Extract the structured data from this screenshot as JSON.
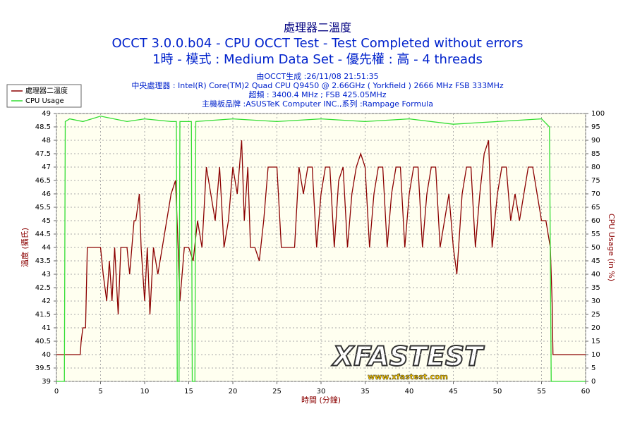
{
  "chart_data": {
    "type": "line",
    "title": "處理器二溫度",
    "subtitles": [
      "OCCT 3.0.0.b04 - CPU OCCT Test - Test Completed without errors",
      "1時 - 模式 : Medium Data Set - 優先權 : 高 - 4 threads"
    ],
    "info": [
      "由OCCT生成 :26/11/08 21:51:35",
      "中央處理器 : Intel(R) Core(TM)2 Quad CPU Q9450 @ 2.66GHz ( Yorkfield ) 2666 MHz FSB 333MHz",
      "超頻 : 3400.4 MHz ; FSB 425.05MHz",
      "主機板品牌 :ASUSTeK Computer INC.,系列 :Rampage Formula"
    ],
    "x_label": "時間 (分鐘)",
    "y_label": "溫度 (攝氏)",
    "y2_label": "CPU Usage (in %)",
    "watermark": [
      "XFASTEST",
      "www.xfastest.com"
    ],
    "xlim": [
      0,
      60
    ],
    "xticks": [
      0,
      5,
      10,
      15,
      20,
      25,
      30,
      35,
      40,
      45,
      50,
      55,
      60
    ],
    "ylim": [
      39,
      49
    ],
    "yticks": [
      39,
      39.5,
      40,
      40.5,
      41,
      41.5,
      42,
      42.5,
      43,
      43.5,
      44,
      44.5,
      45,
      45.5,
      46,
      46.5,
      47,
      47.5,
      48,
      48.5,
      49
    ],
    "y2lim": [
      0,
      100
    ],
    "y2ticks": [
      0,
      5,
      10,
      15,
      20,
      25,
      30,
      35,
      40,
      45,
      50,
      55,
      60,
      65,
      70,
      75,
      80,
      85,
      90,
      95,
      100
    ],
    "grid": true,
    "series": [
      {
        "name": "處理器二溫度",
        "color": "#8b0000",
        "axis": "y",
        "x": [
          0,
          2.7,
          2.8,
          3,
          3.3,
          3.5,
          5,
          5.3,
          5.7,
          6,
          6.3,
          6.6,
          7,
          7.3,
          8,
          8.3,
          8.8,
          9,
          9.4,
          9.6,
          10,
          10.3,
          10.6,
          11,
          11.5,
          12,
          12.5,
          13,
          13.5,
          13.8,
          14,
          14.5,
          15,
          15.5,
          16,
          16.5,
          17,
          17.5,
          18,
          18.5,
          19,
          19.5,
          20,
          20.5,
          21,
          21.3,
          21.7,
          22,
          22.5,
          23,
          23.5,
          24,
          25,
          25.5,
          26,
          27,
          27.5,
          28,
          28.5,
          29,
          29.5,
          30,
          30.5,
          31,
          31.5,
          32,
          32.5,
          33,
          33.5,
          34,
          34.5,
          35,
          35.5,
          36,
          36.5,
          37,
          37.5,
          38,
          38.5,
          39,
          39.5,
          40,
          40.5,
          41,
          41.5,
          42,
          42.5,
          43,
          43.5,
          44,
          44.5,
          45,
          45.4,
          46,
          46.5,
          47,
          47.5,
          48,
          48.5,
          49,
          49.4,
          50,
          50.5,
          51,
          51.5,
          52,
          52.5,
          53,
          53.5,
          54,
          54.5,
          55,
          55.5,
          56,
          56.2,
          56.3,
          60
        ],
        "values": [
          40,
          40,
          40.5,
          41,
          41,
          44,
          44,
          43,
          42,
          43.5,
          42,
          44,
          41.5,
          44,
          44,
          43,
          45,
          45,
          46,
          44,
          42,
          44,
          41.5,
          44,
          43,
          44,
          45,
          46,
          46.5,
          44,
          42,
          44,
          44,
          43.5,
          45,
          44,
          47,
          46,
          45,
          47,
          44,
          45,
          47,
          46,
          48,
          45,
          47,
          44,
          44,
          43.5,
          45,
          47,
          47,
          44,
          44,
          44,
          47,
          46,
          47,
          47,
          44,
          46,
          47,
          47,
          44,
          46.5,
          47,
          44,
          46,
          47,
          47.5,
          47,
          44,
          46,
          47,
          47,
          44,
          46,
          47,
          47,
          44,
          46,
          47,
          47,
          44,
          46,
          47,
          47,
          44,
          45,
          46,
          44,
          43,
          46,
          47,
          47,
          44,
          46,
          47.5,
          48,
          44,
          46,
          47,
          47,
          45,
          46,
          45,
          46,
          47,
          47,
          46,
          45,
          45,
          44,
          42,
          40,
          40
        ]
      },
      {
        "name": "CPU Usage",
        "color": "#33dd33",
        "axis": "y2",
        "x": [
          0,
          0.9,
          1,
          1.5,
          3,
          5,
          8,
          10,
          13,
          13.6,
          13.7,
          13.9,
          14,
          15.3,
          15.4,
          15.7,
          15.8,
          20,
          25,
          30,
          35,
          40,
          45,
          50,
          55,
          55.9,
          56.1,
          60
        ],
        "values": [
          0,
          0,
          97,
          98,
          97,
          99,
          97,
          98,
          97,
          97,
          0,
          0,
          97,
          97,
          0,
          0,
          97,
          98,
          97,
          98,
          97,
          98,
          96,
          97,
          98,
          95,
          0,
          0
        ]
      }
    ]
  }
}
